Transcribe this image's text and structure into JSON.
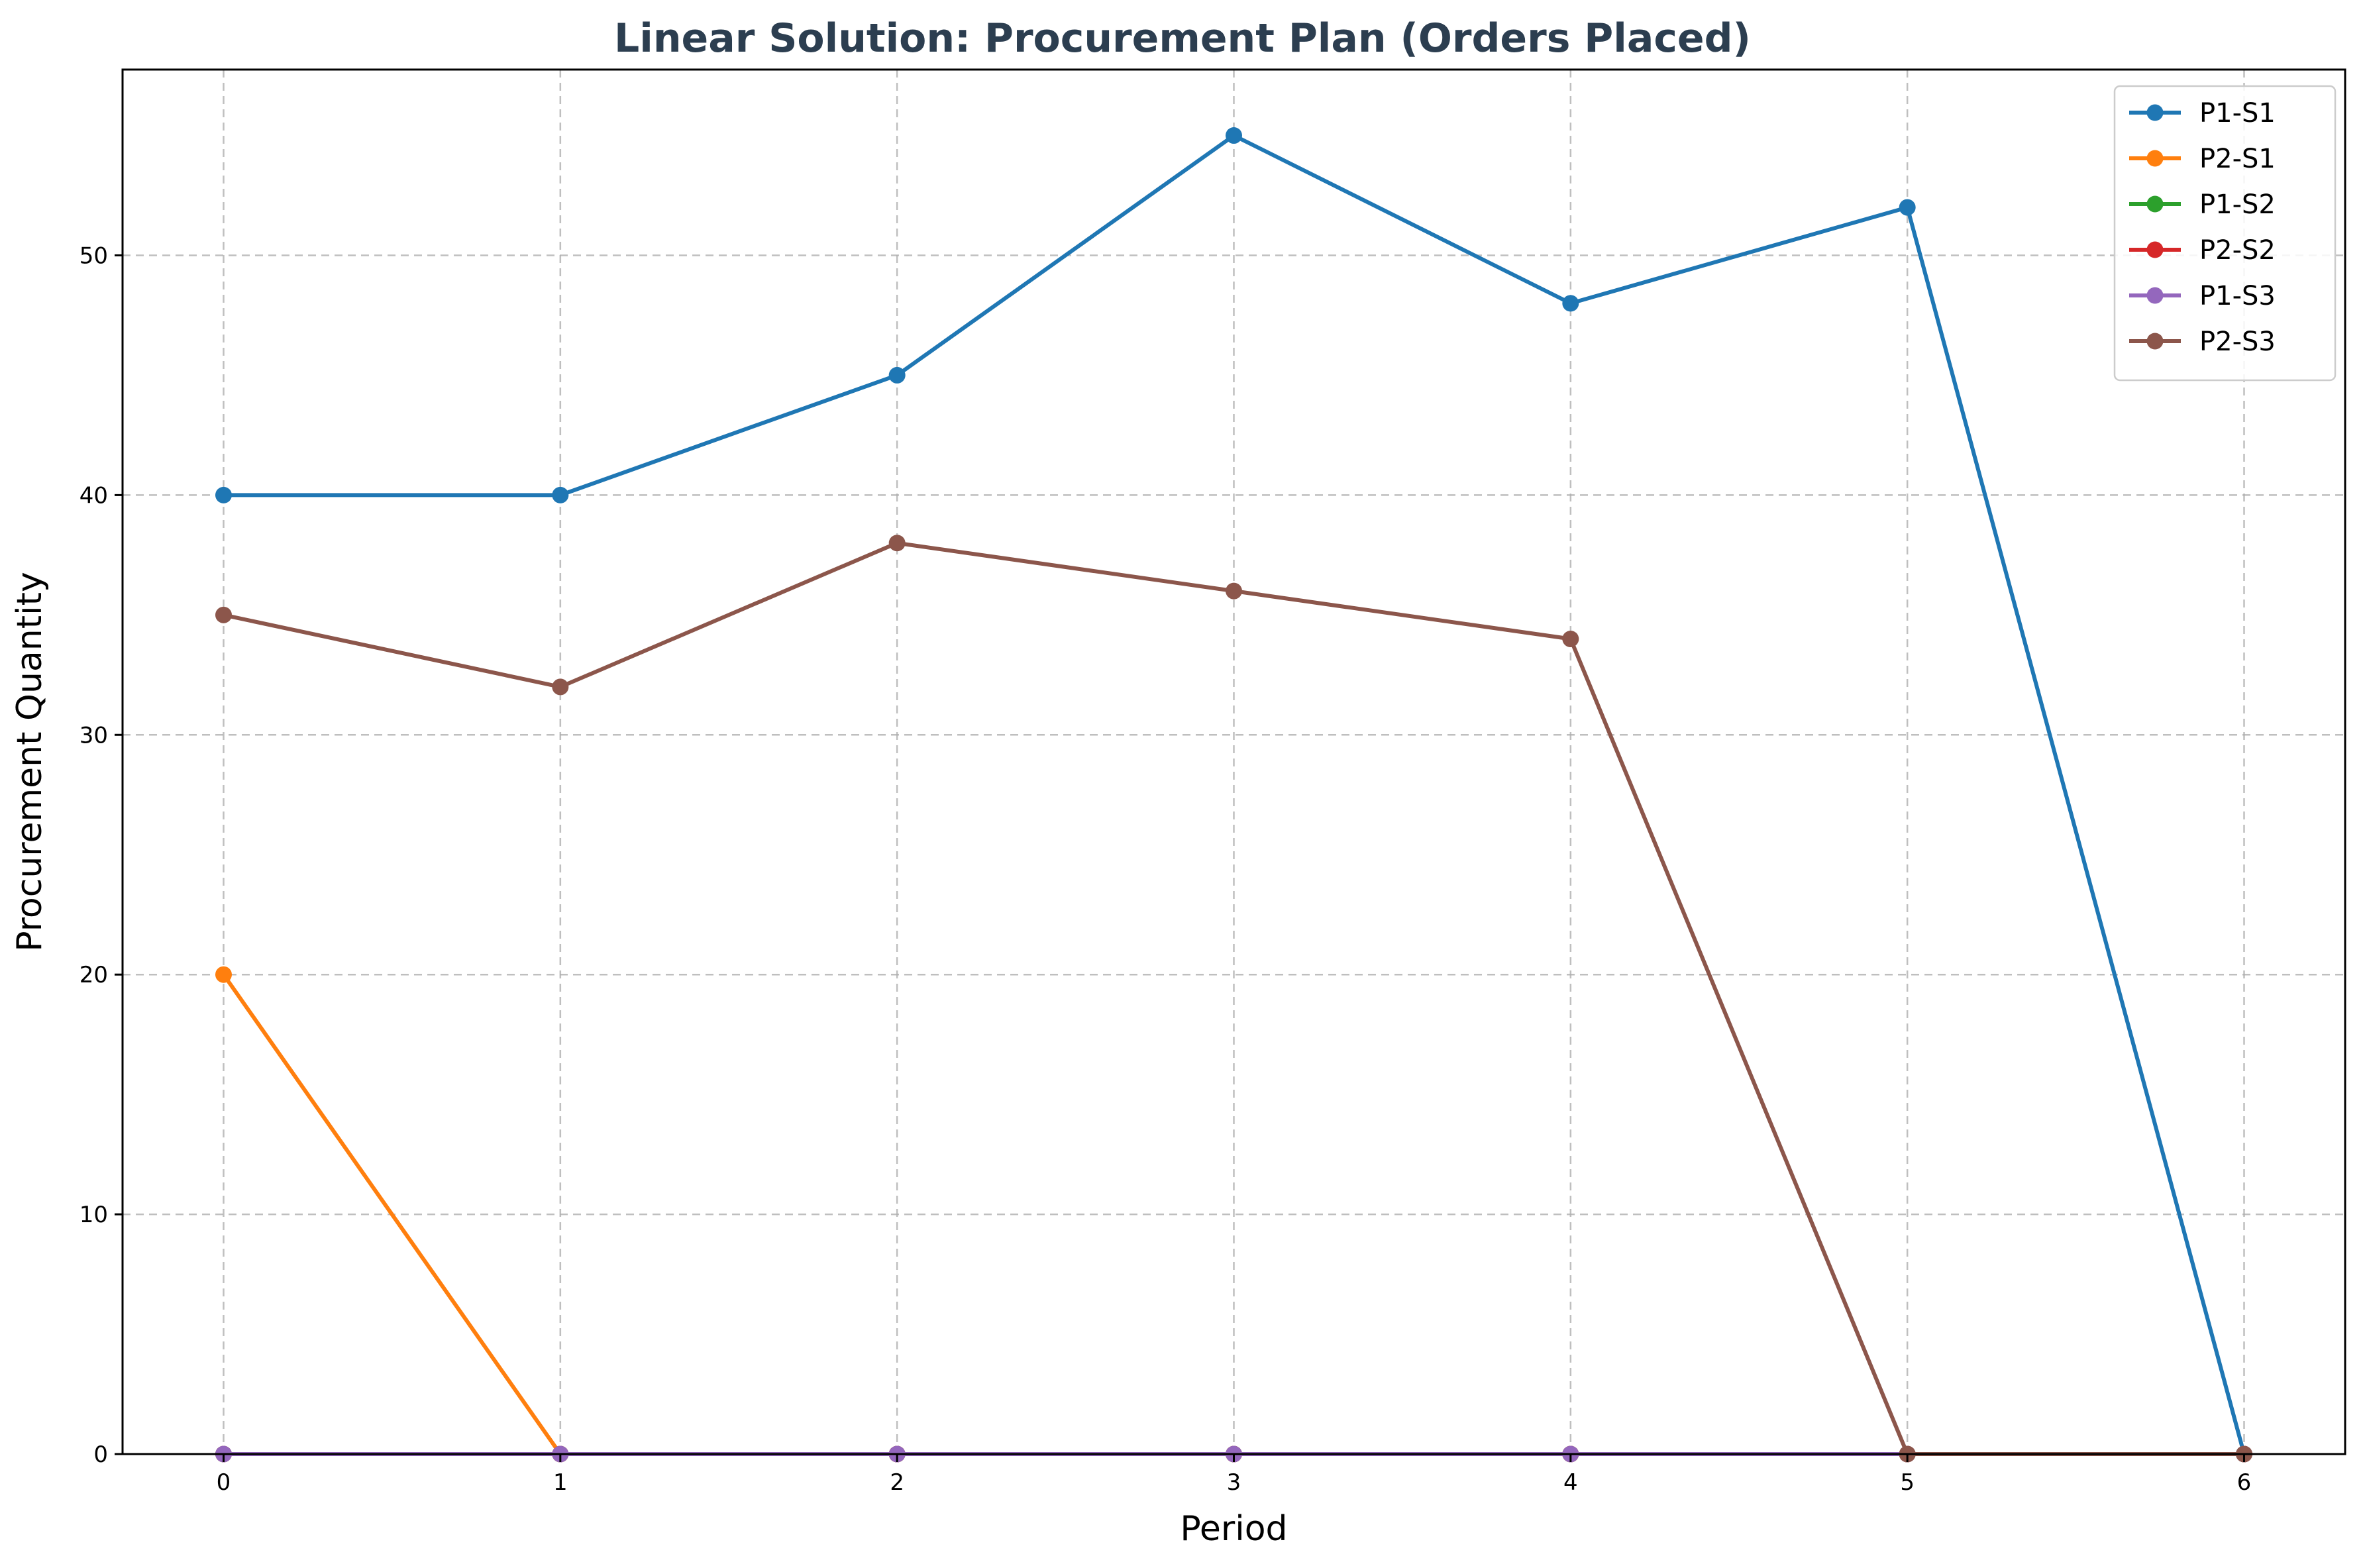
{
  "chart_data": {
    "type": "line",
    "title": "Linear Solution: Procurement Plan (Orders Placed)",
    "xlabel": "Period",
    "ylabel": "Procurement Quantity",
    "x": [
      0,
      1,
      2,
      3,
      4,
      5,
      6
    ],
    "xticks": [
      "0",
      "1",
      "2",
      "3",
      "4",
      "5",
      "6"
    ],
    "yticks": [
      "0",
      "10",
      "20",
      "30",
      "40",
      "50"
    ],
    "xlim": [
      -0.3,
      6.3
    ],
    "ylim": [
      0,
      57.75
    ],
    "grid": true,
    "legend_position": "top-right",
    "series": [
      {
        "name": "P1-S1",
        "color": "#1f77b4",
        "values": [
          40,
          40,
          45,
          55,
          48,
          52,
          0
        ]
      },
      {
        "name": "P2-S1",
        "color": "#ff7f0e",
        "values": [
          20,
          0,
          0,
          0,
          0,
          0,
          0
        ]
      },
      {
        "name": "P1-S2",
        "color": "#2ca02c",
        "values": [
          0,
          0,
          0,
          0,
          0,
          0,
          0
        ]
      },
      {
        "name": "P2-S2",
        "color": "#d62728",
        "values": [
          0,
          0,
          0,
          0,
          0,
          0,
          0
        ]
      },
      {
        "name": "P1-S3",
        "color": "#9467bd",
        "values": [
          0,
          0,
          0,
          0,
          0,
          0,
          0
        ]
      },
      {
        "name": "P2-S3",
        "color": "#8c564b",
        "values": [
          35,
          32,
          38,
          36,
          34,
          0,
          0
        ]
      }
    ]
  }
}
